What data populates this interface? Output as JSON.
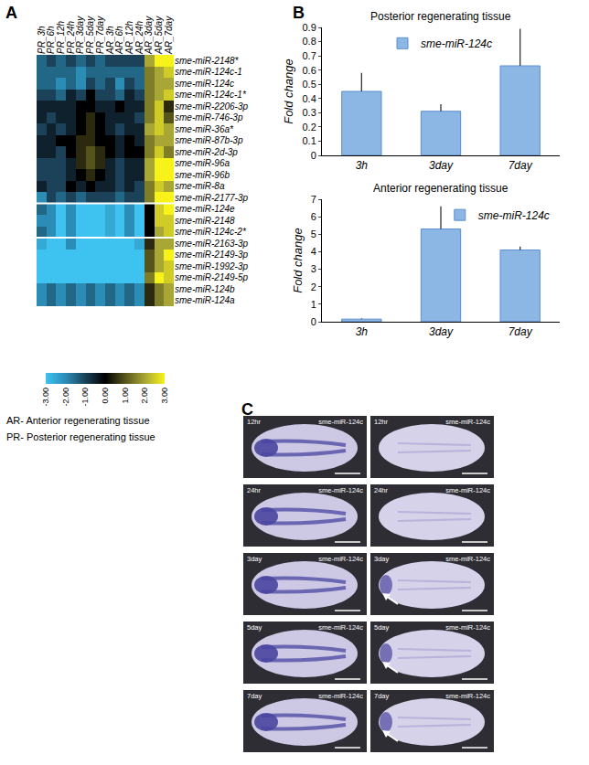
{
  "panel_labels": [
    "A",
    "B",
    "C"
  ],
  "chart_data": [
    {
      "type": "heatmap",
      "x": [
        "PR_3h",
        "PR_6h",
        "PR_12h",
        "PR_24h",
        "PR_3day",
        "PR_5day",
        "PR_7day",
        "AR_3h",
        "AR_6h",
        "AR_12h",
        "AR_24h",
        "AR_3day",
        "AR_5day",
        "AR_7day"
      ],
      "rows": [
        [
          "sme-miR-2148*",
          "sme-miR-124c-1",
          "sme-miR-124c",
          "sme-miR-124c-1*",
          "sme-miR-2206-3p",
          "sme-miR-746-3p",
          "sme-miR-36a*",
          "sme-miR-87b-3p",
          "sme-miR-2d-3p",
          "sme-miR-96a",
          "sme-miR-96b",
          "sme-miR-8a",
          "sme-miR-2177-3p"
        ],
        [
          "sme-miR-124e",
          "sme-miR-2148",
          "sme-miR-124c-2*"
        ],
        [
          "sme-miR-2163-3p",
          "sme-miR-2149-3p",
          "sme-miR-1992-3p",
          "sme-miR-2149-5p",
          "sme-miR-124b",
          "sme-miR-124a"
        ]
      ],
      "cells": [
        [
          [
            -1.5,
            -1,
            -1.5,
            -1,
            -1.5,
            -1,
            -1.5,
            -1,
            -1,
            -1,
            -1,
            2,
            3,
            3
          ],
          [
            -1.5,
            -1.5,
            -1.5,
            -1.5,
            -2,
            -1.5,
            -1.5,
            -1.5,
            -1.5,
            -1.5,
            -1.5,
            1.5,
            2,
            2.5
          ],
          [
            -1.5,
            -1.5,
            -2,
            -1.5,
            -2,
            -1,
            -1.5,
            -1,
            -2,
            -1,
            -1.5,
            1.5,
            2,
            2
          ],
          [
            -1,
            -1,
            -1.5,
            -0.5,
            -1,
            0,
            -1,
            -1,
            -1.5,
            -0.5,
            -1,
            1.5,
            2,
            2.5
          ],
          [
            -0.5,
            -0.5,
            -0.5,
            -0.5,
            0,
            0,
            -0.5,
            -0.5,
            0,
            -0.5,
            -0.5,
            1.5,
            2.5,
            0.5
          ],
          [
            -0.5,
            -1,
            -0.5,
            -0.5,
            0,
            0.5,
            0,
            -0.5,
            -0.5,
            -0.5,
            -1,
            1.5,
            2.5,
            1
          ],
          [
            -1,
            -0.5,
            -1,
            -0.5,
            0,
            0.5,
            0,
            -0.5,
            -1,
            -0.5,
            -0.5,
            2,
            2.5,
            2
          ],
          [
            -0.5,
            -0.5,
            0,
            0,
            0.5,
            0.5,
            0,
            0,
            -0.5,
            0,
            -0.5,
            1.5,
            2,
            2
          ],
          [
            -0.5,
            -0.5,
            -1,
            0,
            0.5,
            1,
            0.5,
            0,
            -0.5,
            0,
            0,
            1.5,
            2.5,
            1.5
          ],
          [
            -1,
            -1,
            -1,
            -0.5,
            0.5,
            1,
            0.5,
            -0.5,
            -1,
            -0.5,
            -0.5,
            2,
            3,
            3
          ],
          [
            -1,
            -1,
            -1,
            -0.5,
            0,
            0.5,
            0,
            -0.5,
            -1,
            -0.5,
            -0.5,
            2,
            3,
            3
          ],
          [
            -0.5,
            -1,
            -1,
            0,
            -0.5,
            0,
            -0.5,
            -0.5,
            -1,
            -0.5,
            -1,
            1.5,
            2.5,
            2
          ],
          [
            -2,
            -1,
            -1.5,
            -1,
            -1.5,
            -1,
            -1,
            -1,
            -1.5,
            -1,
            -1,
            1.5,
            3,
            3
          ]
        ],
        [
          [
            -1.5,
            -2,
            -3,
            -2,
            -3,
            -3,
            -3,
            -2.5,
            -3,
            -2,
            -3,
            0,
            2.5,
            3
          ],
          [
            -2,
            -2,
            -3,
            -2,
            -3,
            -3,
            -3,
            -2.5,
            -3,
            -2,
            -3,
            0,
            2.5,
            2.5
          ],
          [
            -1.5,
            -2,
            -3,
            -2,
            -3,
            -3,
            -3,
            -2.5,
            -3,
            -2,
            -3,
            0,
            2,
            2.5
          ]
        ],
        [
          [
            -2.5,
            -3,
            -3,
            -2,
            -3,
            -3,
            -3,
            -3,
            -3,
            -3,
            -2.5,
            0.5,
            2,
            2
          ],
          [
            -3,
            -3,
            -3,
            -3,
            -3,
            -3,
            -3,
            -3,
            -3,
            -3,
            -3,
            1,
            2,
            3
          ],
          [
            -3,
            -3,
            -3,
            -3,
            -3,
            -3,
            -3,
            -3,
            -3,
            -3,
            -3,
            1,
            2,
            2.5
          ],
          [
            -3,
            -3,
            -3,
            -3,
            -3,
            -3,
            -3,
            -3,
            -3,
            -3,
            -3,
            1.5,
            3,
            2.5
          ],
          [
            -2,
            -1.5,
            -2,
            -1.5,
            -2,
            -1.5,
            -2,
            -1.5,
            -2,
            -1.5,
            -2,
            0.5,
            1.5,
            2
          ],
          [
            -2,
            -1.5,
            -2,
            -1.5,
            -2,
            -1.5,
            -2,
            -1.5,
            -2,
            -1.5,
            -2,
            0.5,
            1.5,
            2
          ]
        ]
      ],
      "zlim": [
        -3,
        3
      ],
      "zticks": [
        {
          "value": -3,
          "label": "-3.00"
        },
        {
          "value": -2,
          "label": "-2.00"
        },
        {
          "value": -1,
          "label": "-1.00"
        },
        {
          "value": 0,
          "label": "0.00"
        },
        {
          "value": 1,
          "label": "1.00"
        },
        {
          "value": 2,
          "label": "2.00"
        },
        {
          "value": 3,
          "label": "3.00"
        }
      ],
      "annotations": [
        "AR- Anterior regenerating tissue",
        "PR- Posterior regenerating tissue"
      ]
    },
    {
      "type": "bar",
      "title": "Posterior regenerating tissue",
      "categories": [
        "3h",
        "3day",
        "7day"
      ],
      "series": [
        {
          "name": "sme-miR-124c",
          "color": "#8cb6e4",
          "values": [
            0.45,
            0.31,
            0.63
          ],
          "error": [
            0.13,
            0.05,
            0.26
          ]
        }
      ],
      "ylabel": "Fold change",
      "ylim": [
        0,
        0.9
      ],
      "yticks": [
        0,
        0.1,
        0.2,
        0.3,
        0.4,
        0.5,
        0.6,
        0.7,
        0.8,
        0.9
      ],
      "legend": "top center",
      "grid": false
    },
    {
      "type": "bar",
      "title": "Anterior regenerating tissue",
      "categories": [
        "3h",
        "3day",
        "7day"
      ],
      "series": [
        {
          "name": "sme-miR-124c",
          "color": "#8cb6e4",
          "values": [
            0.15,
            5.3,
            4.1
          ],
          "error": [
            0.03,
            1.3,
            0.2
          ]
        }
      ],
      "ylabel": "Fold change",
      "ylim": [
        0,
        7
      ],
      "yticks": [
        0,
        1,
        2,
        3,
        4,
        5,
        6,
        7
      ],
      "legend": "top right",
      "grid": false
    }
  ],
  "images": [
    {
      "time": "12hr",
      "probe": "sme-miR-124c",
      "arrow": false
    },
    {
      "time": "12hr",
      "probe": "sme-miR-124c",
      "arrow": false
    },
    {
      "time": "24hr",
      "probe": "sme-miR-124c",
      "arrow": false
    },
    {
      "time": "24hr",
      "probe": "sme-miR-124c",
      "arrow": false
    },
    {
      "time": "3day",
      "probe": "sme-miR-124c",
      "arrow": false
    },
    {
      "time": "3day",
      "probe": "sme-miR-124c",
      "arrow": true
    },
    {
      "time": "5day",
      "probe": "sme-miR-124c",
      "arrow": false
    },
    {
      "time": "5day",
      "probe": "sme-miR-124c",
      "arrow": true
    },
    {
      "time": "7day",
      "probe": "sme-miR-124c",
      "arrow": false
    },
    {
      "time": "7day",
      "probe": "sme-miR-124c",
      "arrow": true
    }
  ]
}
